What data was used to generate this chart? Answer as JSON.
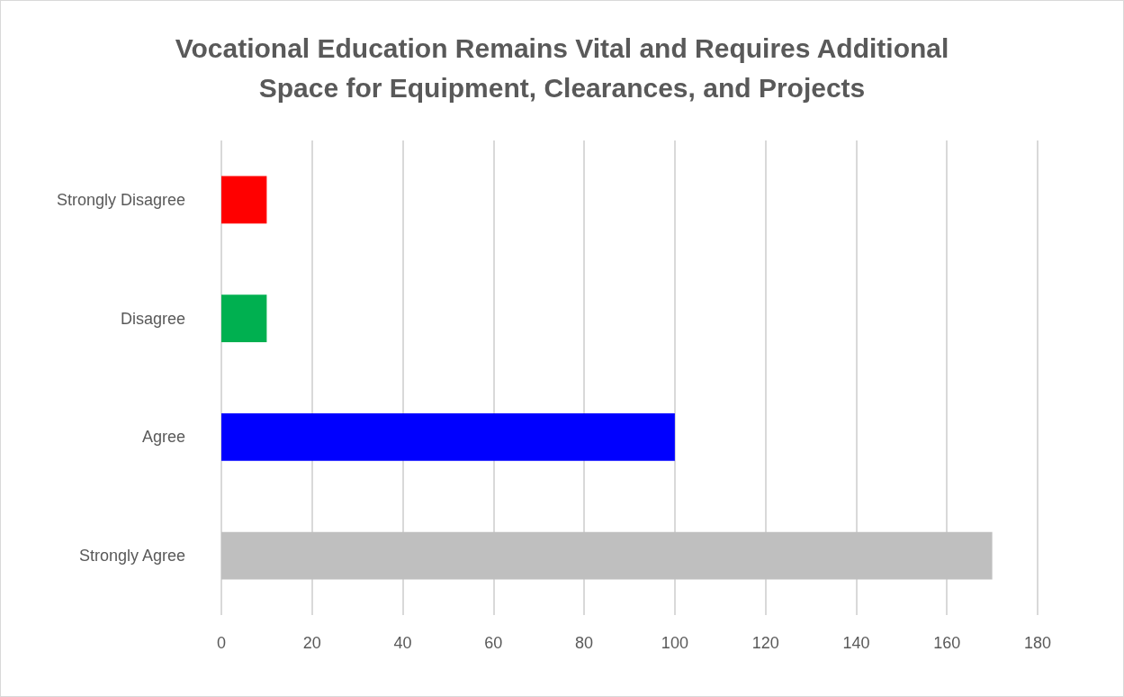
{
  "chart_data": {
    "type": "bar",
    "orientation": "horizontal",
    "title": "Vocational Education Remains Vital and Requires Additional\nSpace for Equipment, Clearances, and Projects",
    "categories": [
      "Strongly Disagree",
      "Disagree",
      "Agree",
      "Strongly Agree"
    ],
    "values": [
      10,
      10,
      100,
      170
    ],
    "colors": [
      "#ff0000",
      "#00b050",
      "#0000ff",
      "#bfbfbf"
    ],
    "xlim": [
      0,
      180
    ],
    "xticks": [
      0,
      20,
      40,
      60,
      80,
      100,
      120,
      140,
      160,
      180
    ],
    "grid": "x"
  }
}
